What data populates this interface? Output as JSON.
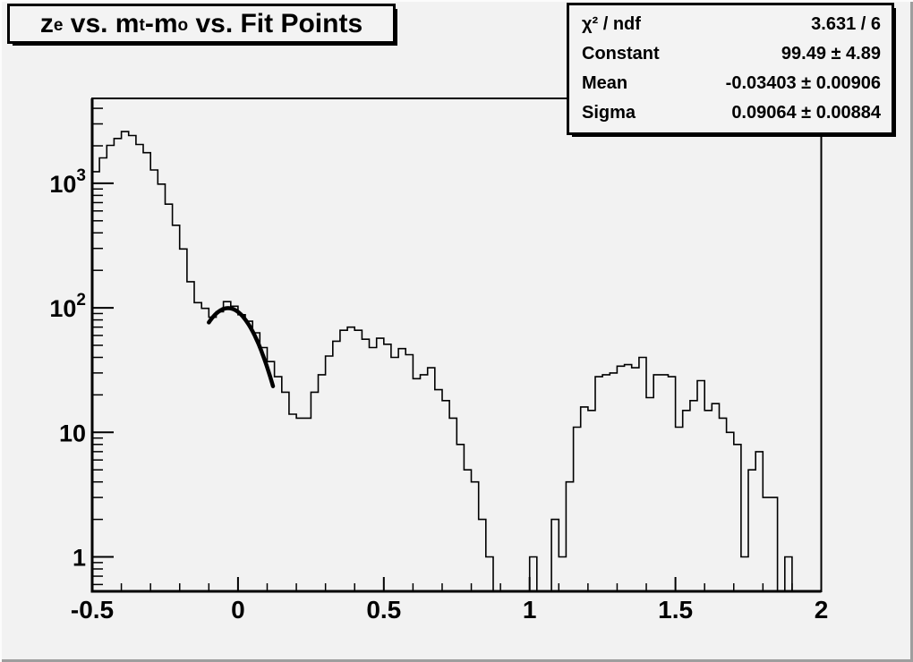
{
  "canvas": {
    "background": "#f2f2f2",
    "bevel_light": "#fcfcfc",
    "bevel_dark": "#9e9e9e",
    "pave_fill": "#f3f3f3",
    "line_color": "#000000"
  },
  "title": {
    "text": "z_e vs. m_t-m_o vs. Fit Points",
    "segments": [
      {
        "text": "z"
      },
      {
        "sub": "e"
      },
      {
        "text": " vs. m"
      },
      {
        "sub": "t"
      },
      {
        "text": "-m"
      },
      {
        "sub": "o"
      },
      {
        "text": " vs. Fit Points"
      }
    ]
  },
  "stats_box": {
    "rows": [
      {
        "label": "χ² / ndf",
        "value": "3.631 / 6"
      },
      {
        "label": "Constant",
        "value": "99.49 ± 4.89"
      },
      {
        "label": "Mean",
        "value": "-0.03403 ± 0.00906"
      },
      {
        "label": "Sigma",
        "value": "0.09064 ± 0.00884"
      }
    ]
  },
  "chart_data": {
    "type": "bar",
    "style": "step-histogram",
    "title": "z_e vs. m_t-m_o vs. Fit Points",
    "xlabel": "",
    "ylabel": "",
    "grid": false,
    "legend": false,
    "line_color": "#000000",
    "x_axis": {
      "min": -0.5,
      "max": 2.0,
      "major_ticks": [
        -0.5,
        0,
        0.5,
        1,
        1.5,
        2
      ],
      "major_labels": [
        "-0.5",
        "0",
        "0.5",
        "1",
        "1.5",
        "2"
      ],
      "minor_ticks": [
        -0.4,
        -0.3,
        -0.2,
        -0.1,
        0.1,
        0.2,
        0.3,
        0.4,
        0.6,
        0.7,
        0.8,
        0.9,
        1.1,
        1.2,
        1.3,
        1.4,
        1.6,
        1.7,
        1.8,
        1.9
      ]
    },
    "y_axis": {
      "scale": "log",
      "min": 0.53,
      "max": 4800,
      "major_ticks": [
        {
          "v": 1,
          "base": "1",
          "exp": ""
        },
        {
          "v": 10,
          "base": "10",
          "exp": ""
        },
        {
          "v": 100,
          "base": "10",
          "exp": "2"
        },
        {
          "v": 1000,
          "base": "10",
          "exp": "3"
        }
      ],
      "minor_ticks": [
        0.6,
        0.7,
        0.8,
        0.9,
        2,
        3,
        4,
        5,
        6,
        7,
        8,
        9,
        20,
        30,
        40,
        50,
        60,
        70,
        80,
        90,
        200,
        300,
        400,
        500,
        600,
        700,
        800,
        900,
        2000,
        3000,
        4000
      ]
    },
    "bins": {
      "start": -0.5,
      "width": 0.025,
      "count": 100,
      "values": [
        1240,
        1600,
        2015,
        2290,
        2600,
        2420,
        2050,
        1760,
        1280,
        985,
        680,
        460,
        297,
        162,
        110,
        99,
        84,
        93,
        112,
        103,
        88,
        78,
        63,
        48,
        37,
        28,
        21,
        14,
        13,
        13,
        21,
        29,
        41,
        54,
        66,
        70,
        66,
        56,
        48,
        57,
        51,
        40,
        47,
        42,
        27,
        29,
        33,
        22,
        18,
        13,
        8,
        5,
        4,
        2,
        1,
        0,
        0,
        0,
        0,
        0,
        1,
        0,
        0,
        2,
        1,
        4,
        11,
        16,
        15,
        28,
        29,
        30,
        34,
        35,
        33,
        40,
        19,
        29,
        29,
        28,
        11,
        15,
        18,
        26,
        15,
        17,
        13,
        10,
        8,
        1,
        5,
        7,
        3,
        3,
        0,
        1,
        0,
        0,
        0,
        0
      ]
    },
    "fit": {
      "shape": "gaussian",
      "chi2": 3.631,
      "ndf": 6,
      "constant": 99.49,
      "constant_err": 4.89,
      "mean": -0.03403,
      "mean_err": 0.00906,
      "sigma": 0.09064,
      "sigma_err": 0.00884,
      "x_range": [
        -0.1,
        0.12
      ]
    }
  }
}
